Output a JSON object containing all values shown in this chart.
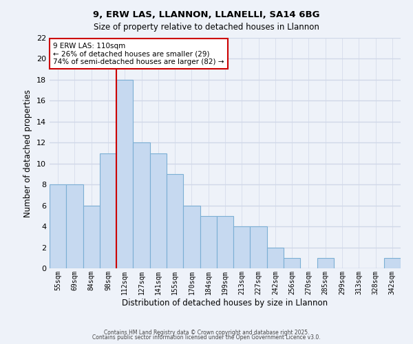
{
  "title1": "9, ERW LAS, LLANNON, LLANELLI, SA14 6BG",
  "title2": "Size of property relative to detached houses in Llannon",
  "xlabel": "Distribution of detached houses by size in Llannon",
  "ylabel": "Number of detached properties",
  "footer1": "Contains HM Land Registry data © Crown copyright and database right 2025.",
  "footer2": "Contains public sector information licensed under the Open Government Licence v3.0.",
  "bin_labels": [
    "55sqm",
    "69sqm",
    "84sqm",
    "98sqm",
    "112sqm",
    "127sqm",
    "141sqm",
    "155sqm",
    "170sqm",
    "184sqm",
    "199sqm",
    "213sqm",
    "227sqm",
    "242sqm",
    "256sqm",
    "270sqm",
    "285sqm",
    "299sqm",
    "313sqm",
    "328sqm",
    "342sqm"
  ],
  "bar_values": [
    8,
    8,
    6,
    11,
    18,
    12,
    11,
    9,
    6,
    5,
    5,
    4,
    4,
    2,
    1,
    0,
    1,
    0,
    0,
    0,
    1
  ],
  "bar_color": "#c6d9f0",
  "bar_edge_color": "#7bafd4",
  "ylim": [
    0,
    22
  ],
  "yticks": [
    0,
    2,
    4,
    6,
    8,
    10,
    12,
    14,
    16,
    18,
    20,
    22
  ],
  "vline_x_index": 4,
  "vline_color": "#cc0000",
  "annotation_title": "9 ERW LAS: 110sqm",
  "annotation_line1": "← 26% of detached houses are smaller (29)",
  "annotation_line2": "74% of semi-detached houses are larger (82) →",
  "annotation_box_color": "#ffffff",
  "annotation_box_edge": "#cc0000",
  "background_color": "#eef2f9",
  "grid_color": "#d0d8e8"
}
